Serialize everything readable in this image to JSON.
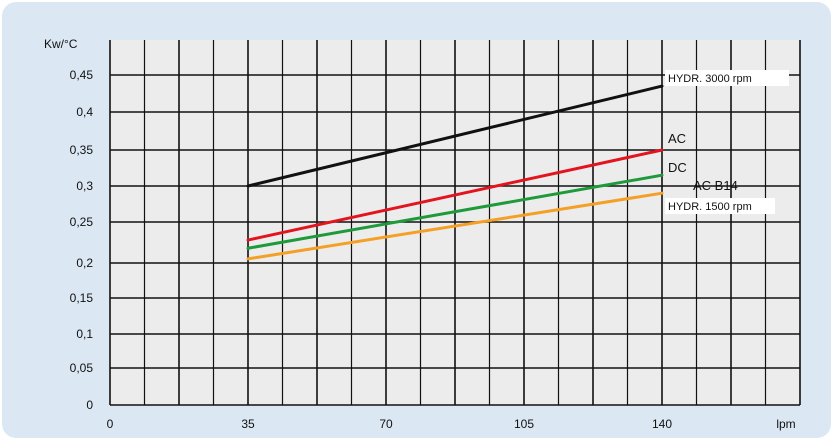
{
  "chart_data": {
    "type": "line",
    "ylabel": "Kw/°C",
    "xlabel": "lpm",
    "x_ticks": [
      "0",
      "35",
      "70",
      "105",
      "140",
      "lpm"
    ],
    "y_ticks": [
      "0",
      "0,05",
      "0,1",
      "0,15",
      "0,2",
      "0,25",
      "0,3",
      "0,35",
      "0,4",
      "0,45"
    ],
    "xlim": [
      0,
      175
    ],
    "ylim": [
      0,
      0.5
    ],
    "y_scale": "log",
    "grid": true,
    "colors": {
      "background": "#dbe8f4",
      "plot_area": "#ececec",
      "grid": "#111111"
    },
    "series": [
      {
        "name": "HYDR. 3000 rpm",
        "color": "#111111",
        "x": [
          35,
          140
        ],
        "y": [
          0.3,
          0.435
        ]
      },
      {
        "name": "AC",
        "color": "#e3141e",
        "x": [
          35,
          140
        ],
        "y": [
          0.228,
          0.35
        ]
      },
      {
        "name": "DC",
        "color": "#1f9a3a",
        "x": [
          35,
          140
        ],
        "y": [
          0.218,
          0.315
        ]
      },
      {
        "name": "AC B14",
        "color": "#1f9a3a",
        "x": [],
        "y": []
      },
      {
        "name": "HYDR. 1500 rpm",
        "color": "#f4a026",
        "x": [
          35,
          140
        ],
        "y": [
          0.205,
          0.29
        ]
      }
    ]
  }
}
